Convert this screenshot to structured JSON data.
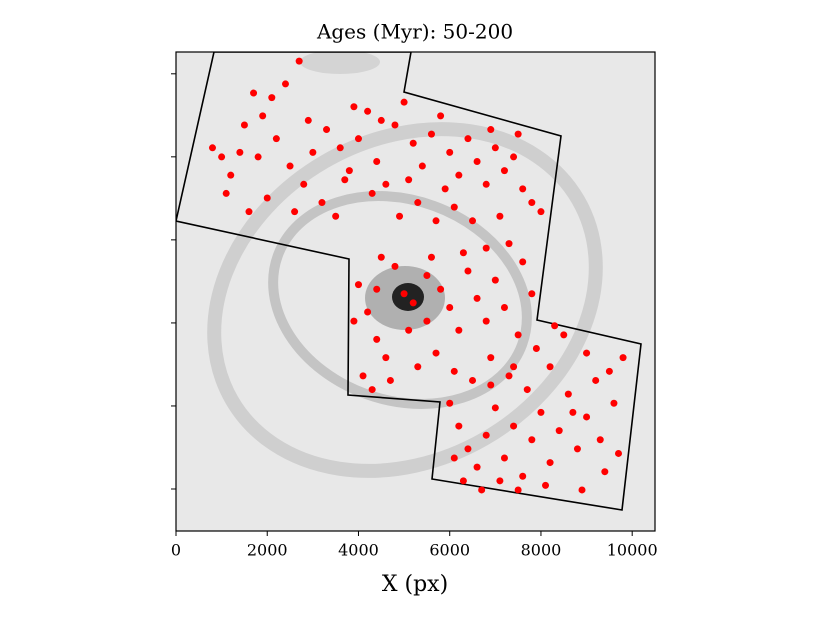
{
  "chart_data": {
    "type": "scatter",
    "title": "Ages (Myr): 50-200",
    "xlabel": "X (px)",
    "xlim": [
      0,
      10500
    ],
    "ylim": [
      0,
      10500
    ],
    "xticks": [
      0,
      2000,
      4000,
      6000,
      8000,
      10000
    ],
    "yticks": [
      921,
      2741,
      4561,
      6382,
      8202,
      10022
    ],
    "ytick_labels": false,
    "color": "#ff0000",
    "x": [
      1000,
      1200,
      800,
      1500,
      1700,
      1900,
      2200,
      2500,
      2000,
      1600,
      2800,
      3000,
      3300,
      3600,
      3800,
      4000,
      4200,
      4400,
      4600,
      4800,
      5000,
      5200,
      5400,
      5600,
      5800,
      6000,
      6200,
      6400,
      6600,
      6800,
      7000,
      7200,
      7400,
      7600,
      7800,
      8000,
      3200,
      3500,
      2600,
      1400,
      4900,
      5300,
      5700,
      6100,
      6500,
      7100,
      2100,
      4500,
      3900,
      1800,
      2900,
      5100,
      5900,
      6900,
      7500,
      4300,
      3700,
      1100,
      2400,
      2700,
      4000,
      4200,
      4400,
      4600,
      4100,
      4800,
      5200,
      5500,
      5800,
      6000,
      6200,
      6400,
      6600,
      6800,
      7000,
      7200,
      7500,
      7800,
      7600,
      7300,
      6800,
      5600,
      5000,
      4500,
      3900,
      4300,
      4700,
      5300,
      5700,
      6100,
      6500,
      6900,
      7400,
      7900,
      5100,
      5500,
      6300,
      4400,
      6000,
      6200,
      6400,
      6600,
      6800,
      7000,
      7200,
      7400,
      7600,
      7800,
      8000,
      8200,
      8400,
      8600,
      8800,
      9000,
      9200,
      9400,
      9600,
      9800,
      9000,
      8500,
      8200,
      7700,
      7300,
      6900,
      6300,
      6700,
      7100,
      8900,
      9300,
      9700,
      8700,
      8100,
      7500,
      9500,
      8300,
      6100
    ],
    "y": [
      8200,
      7800,
      8400,
      8900,
      9600,
      9100,
      8600,
      8000,
      7300,
      7000,
      7600,
      8300,
      8800,
      8400,
      7900,
      8600,
      9200,
      8100,
      7600,
      8900,
      9400,
      8500,
      8000,
      8700,
      9100,
      8300,
      7800,
      8600,
      8100,
      7600,
      8400,
      7900,
      8200,
      7500,
      7200,
      7000,
      7200,
      6900,
      7000,
      8300,
      6900,
      7200,
      6800,
      7100,
      6800,
      6900,
      9500,
      9000,
      9300,
      8200,
      9000,
      7700,
      7500,
      8800,
      8700,
      7400,
      7700,
      7400,
      9800,
      10300,
      5400,
      4800,
      4200,
      3800,
      3400,
      5800,
      5000,
      4600,
      5300,
      4900,
      4400,
      5700,
      5100,
      4600,
      5500,
      4900,
      4300,
      5200,
      5900,
      6300,
      6200,
      6000,
      5200,
      6000,
      4600,
      3100,
      3300,
      3600,
      3900,
      3500,
      3300,
      3800,
      3600,
      4000,
      4400,
      5600,
      6100,
      5300,
      2800,
      2300,
      1800,
      1400,
      2100,
      2700,
      1600,
      2300,
      1200,
      2000,
      2600,
      1500,
      2200,
      3000,
      1800,
      2500,
      3300,
      1300,
      2800,
      3800,
      3900,
      4300,
      3600,
      3100,
      3400,
      3200,
      1100,
      900,
      1100,
      900,
      2000,
      1700,
      2600,
      1000,
      900,
      3500,
      4500,
      1600
    ]
  }
}
